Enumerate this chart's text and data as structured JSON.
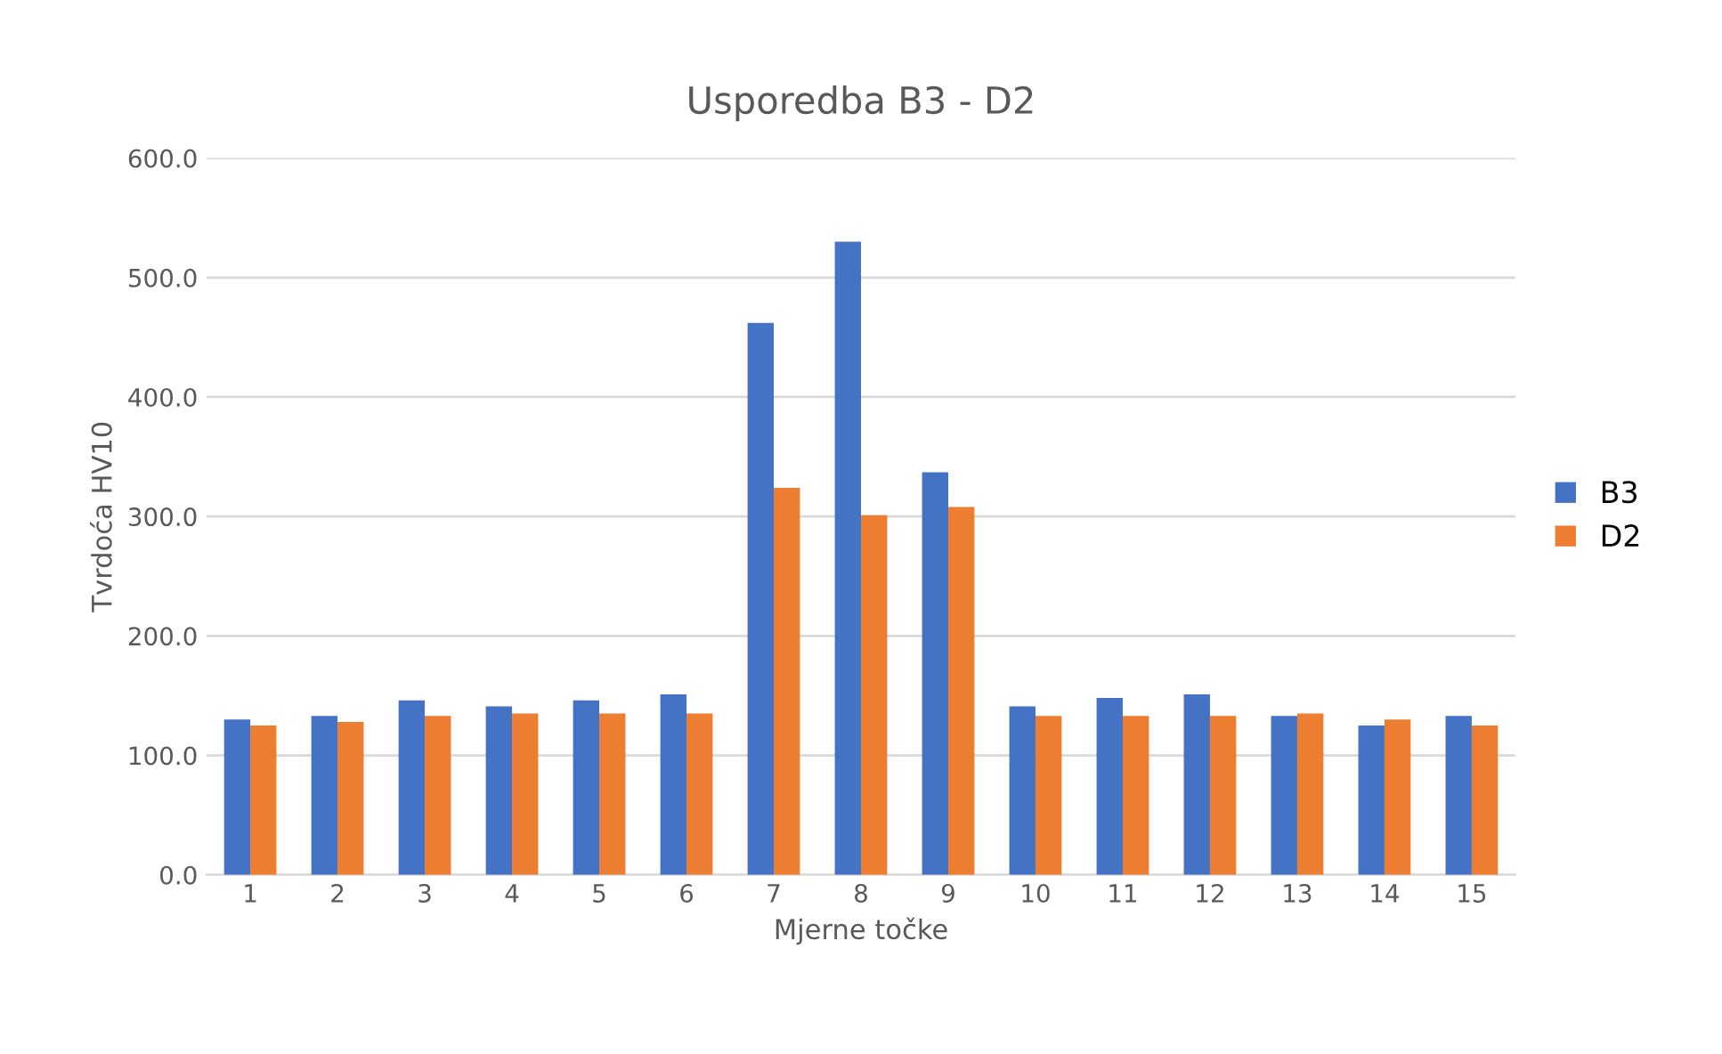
{
  "chart_data": {
    "type": "bar",
    "title": "Usporedba B3 - D2",
    "xlabel": "Mjerne točke",
    "ylabel": "Tvrdoća HV10",
    "categories": [
      "1",
      "2",
      "3",
      "4",
      "5",
      "6",
      "7",
      "8",
      "9",
      "10",
      "11",
      "12",
      "13",
      "14",
      "15"
    ],
    "series": [
      {
        "name": "B3",
        "color": "#4472c4",
        "values": [
          130,
          133,
          146,
          141,
          146,
          151,
          462,
          530,
          337,
          141,
          148,
          151,
          133,
          125,
          133
        ]
      },
      {
        "name": "D2",
        "color": "#ed7d31",
        "values": [
          125,
          128,
          133,
          135,
          135,
          135,
          324,
          301,
          308,
          133,
          133,
          133,
          135,
          130,
          125
        ]
      }
    ],
    "ylim": [
      0,
      600
    ],
    "yticks": [
      {
        "value": 0,
        "label": "0.0"
      },
      {
        "value": 100,
        "label": "100.0"
      },
      {
        "value": 200,
        "label": "200.0"
      },
      {
        "value": 300,
        "label": "300.0"
      },
      {
        "value": 400,
        "label": "400.0"
      },
      {
        "value": 500,
        "label": "500.0"
      },
      {
        "value": 600,
        "label": "600.0"
      }
    ],
    "grid": "y",
    "legend": "right"
  }
}
